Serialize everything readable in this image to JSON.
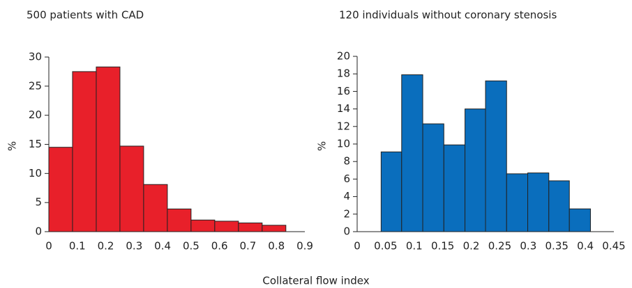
{
  "shared_xlabel": "Collateral flow index",
  "chart_data": [
    {
      "type": "histogram",
      "title": "500 patients with CAD",
      "ylabel": "%",
      "color": "#e8202a",
      "bins": [
        0,
        0.0833,
        0.1667,
        0.25,
        0.3333,
        0.4167,
        0.5,
        0.5833,
        0.6667,
        0.75,
        0.8333
      ],
      "values": [
        14.5,
        27.5,
        28.3,
        14.7,
        8.1,
        3.9,
        2.0,
        1.8,
        1.5,
        1.1
      ],
      "xlim": [
        0,
        0.9
      ],
      "xticks": [
        0,
        0.1,
        0.2,
        0.3,
        0.4,
        0.5,
        0.6,
        0.7,
        0.8,
        0.9
      ],
      "ylim": [
        0,
        30
      ],
      "yticks": [
        0,
        5,
        10,
        15,
        20,
        25,
        30
      ]
    },
    {
      "type": "histogram",
      "title": "120 individuals without coronary stenosis",
      "ylabel": "%",
      "color": "#0a6ebd",
      "bins": [
        0.042,
        0.078,
        0.115,
        0.152,
        0.189,
        0.225,
        0.262,
        0.299,
        0.336,
        0.372,
        0.409
      ],
      "values": [
        9.1,
        17.9,
        12.3,
        9.9,
        14.0,
        17.2,
        6.6,
        6.7,
        5.8,
        2.6
      ],
      "xlim": [
        0,
        0.45
      ],
      "xticks": [
        0,
        0.05,
        0.1,
        0.15,
        0.2,
        0.25,
        0.3,
        0.35,
        0.4,
        0.45
      ],
      "ylim": [
        0,
        20
      ],
      "yticks": [
        0,
        2,
        4,
        6,
        8,
        10,
        12,
        14,
        16,
        18,
        20
      ]
    }
  ]
}
